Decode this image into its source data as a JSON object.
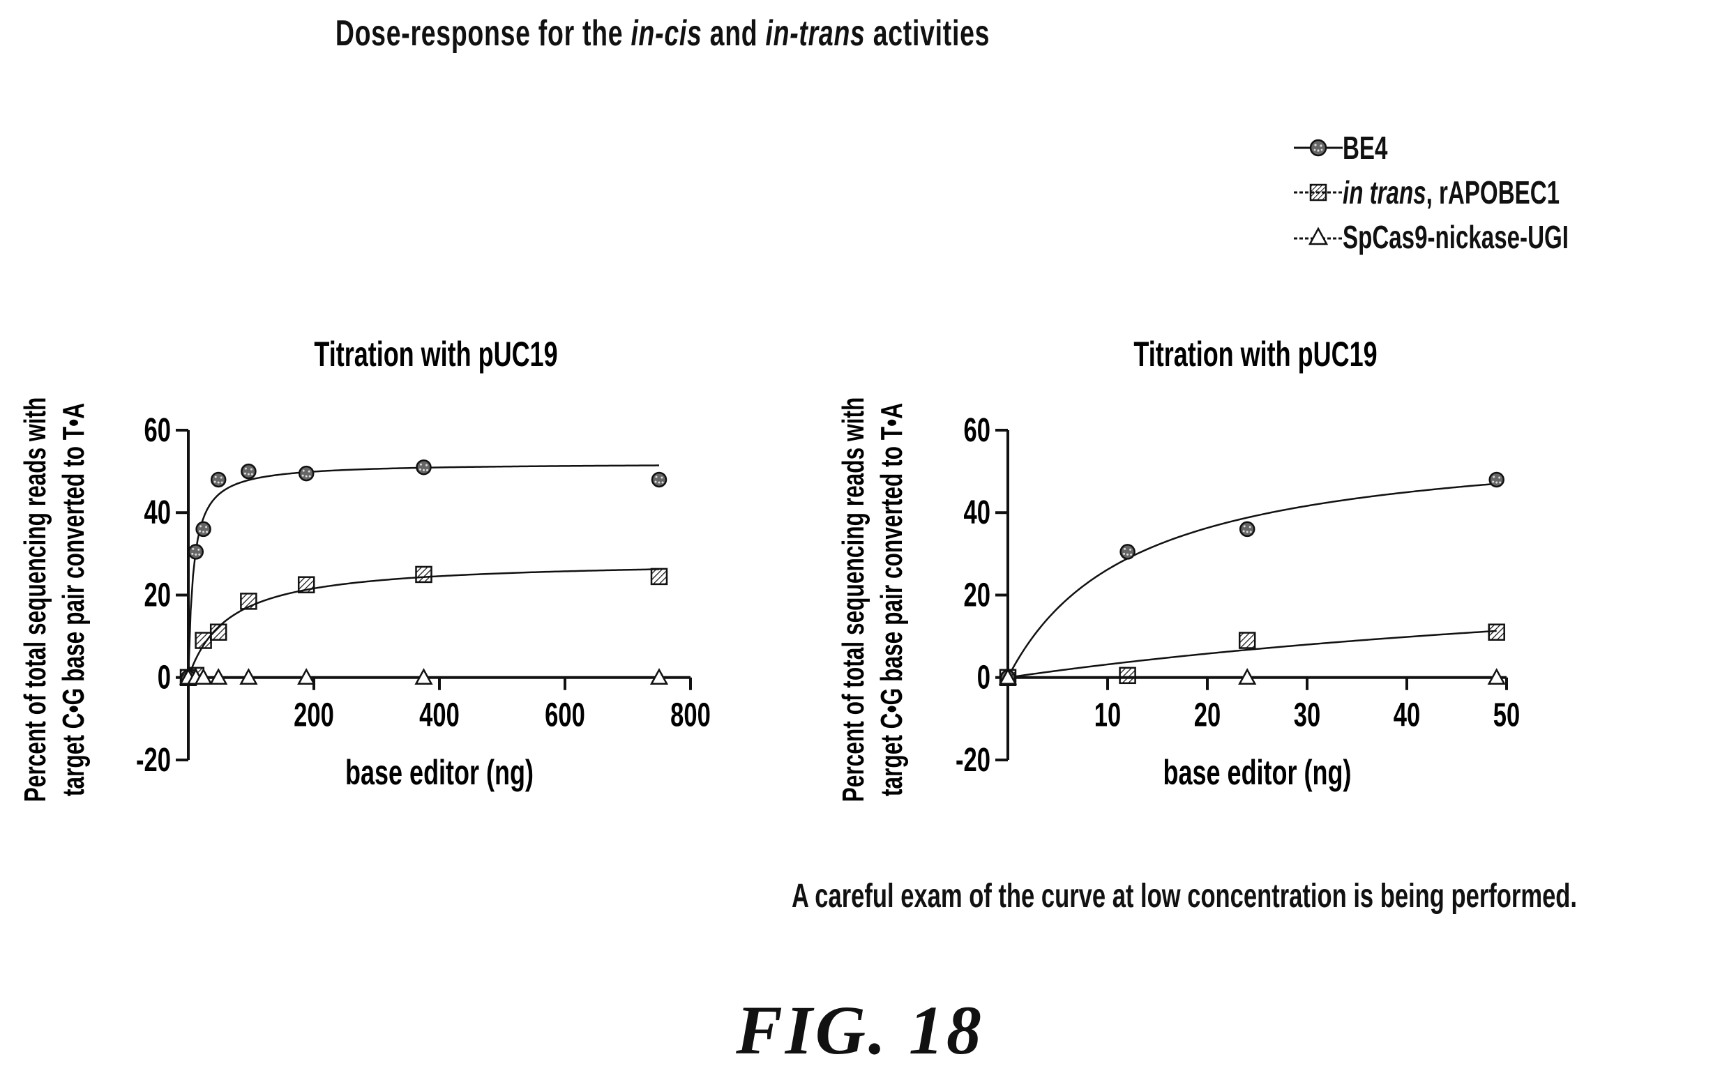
{
  "title": {
    "part1": "Dose-response for the ",
    "part2": "in-cis",
    "part3": " and ",
    "part4": "in-trans",
    "part5": " activities"
  },
  "legend": {
    "be4": "BE4",
    "trans_italic": "in trans",
    "trans_rest": ", rAPOBEC1",
    "spcas9": "SpCas9-nickase-UGI"
  },
  "note": "A careful exam of the curve at low concentration is being performed.",
  "figure_label": "FIG.  18",
  "chart_data": [
    {
      "type": "scatter",
      "title": "Titration with pUC19",
      "xlabel": "base editor (ng)",
      "ylabel_line1": "Percent of total sequencing reads with",
      "ylabel_line2": "target C•G base pair converted to T•A",
      "xlim": [
        0,
        800
      ],
      "ylim": [
        -20,
        60
      ],
      "xticks": [
        200,
        400,
        600,
        800
      ],
      "yticks": [
        -20,
        0,
        20,
        40,
        60
      ],
      "series": [
        {
          "name": "BE4",
          "marker": "dotted-circle",
          "x": [
            0,
            12,
            24,
            48,
            96,
            188,
            375,
            750
          ],
          "y": [
            0,
            30.5,
            36,
            48,
            50,
            49.5,
            51,
            48
          ]
        },
        {
          "name": "in trans, rAPOBEC1",
          "marker": "hatched-square",
          "x": [
            0,
            12,
            24,
            48,
            96,
            188,
            375,
            750
          ],
          "y": [
            0,
            0.5,
            9,
            11,
            18.5,
            22.5,
            25,
            24.5
          ]
        },
        {
          "name": "SpCas9-nickase-UGI",
          "marker": "triangle",
          "x": [
            0,
            12,
            24,
            48,
            96,
            188,
            375,
            750
          ],
          "y": [
            0,
            0,
            0,
            0,
            0,
            0,
            0,
            0
          ]
        }
      ]
    },
    {
      "type": "scatter",
      "title": "Titration with pUC19",
      "xlabel": "base editor (ng)",
      "ylabel_line1": "Percent of total sequencing reads with",
      "ylabel_line2": "target C•G base pair converted to T•A",
      "xlim": [
        0,
        50
      ],
      "ylim": [
        -20,
        60
      ],
      "xticks": [
        10,
        20,
        30,
        40,
        50
      ],
      "yticks": [
        -20,
        0,
        20,
        40,
        60
      ],
      "series": [
        {
          "name": "BE4",
          "marker": "dotted-circle",
          "x": [
            0,
            12,
            24,
            49
          ],
          "y": [
            0,
            30.5,
            36,
            48
          ]
        },
        {
          "name": "in trans, rAPOBEC1",
          "marker": "hatched-square",
          "x": [
            0,
            12,
            24,
            49
          ],
          "y": [
            0,
            0.5,
            9,
            11
          ]
        },
        {
          "name": "SpCas9-nickase-UGI",
          "marker": "triangle",
          "x": [
            0,
            24,
            49
          ],
          "y": [
            0,
            0,
            0
          ]
        }
      ]
    }
  ]
}
